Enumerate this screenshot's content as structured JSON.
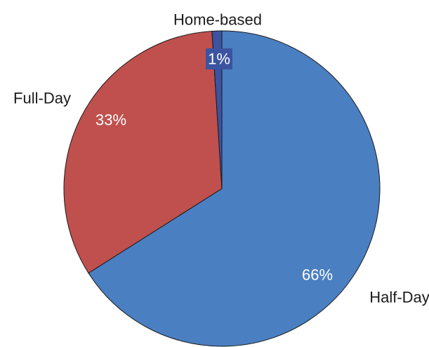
{
  "chart_data": {
    "type": "pie",
    "slices": [
      {
        "name": "Half-Day",
        "value": 66,
        "label": "66%",
        "color": "#4a7fc1"
      },
      {
        "name": "Full-Day",
        "value": 33,
        "label": "33%",
        "color": "#c0504d"
      },
      {
        "name": "Home-based",
        "value": 1,
        "label": "1%",
        "color": "#3b53a0"
      }
    ],
    "start_angle": "12 o'clock",
    "direction": "clockwise",
    "legend": "none",
    "labels": "outside category names, inside percentages"
  }
}
